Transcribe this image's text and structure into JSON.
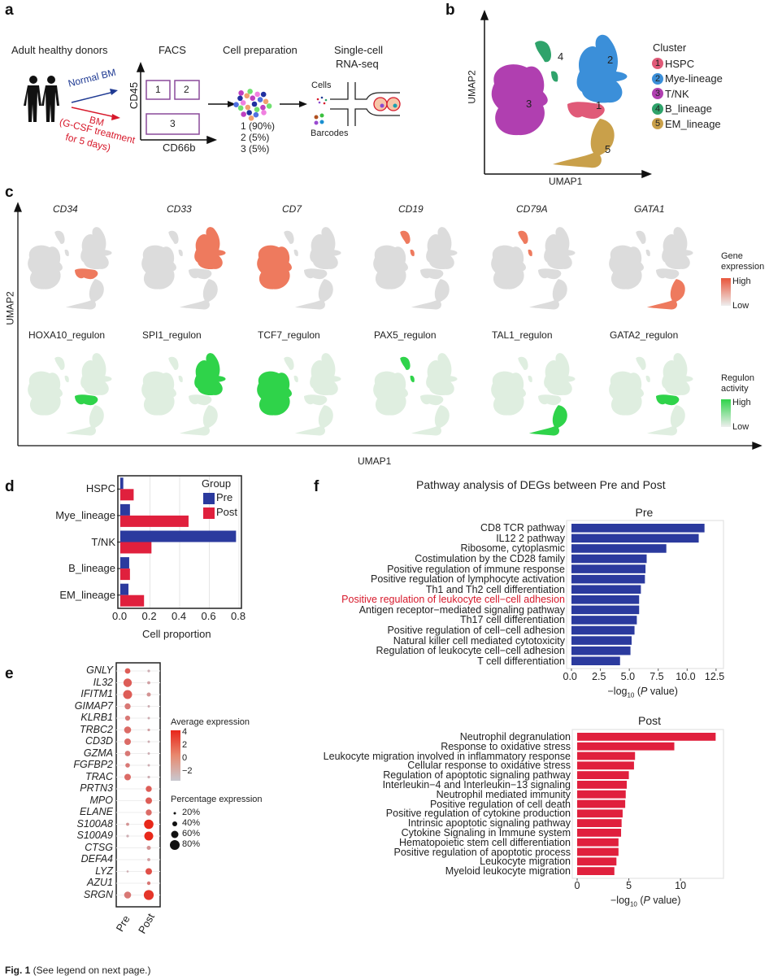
{
  "panels": {
    "a": "a",
    "b": "b",
    "c": "c",
    "d": "d",
    "e": "e",
    "f": "f"
  },
  "panel_a": {
    "donors": "Adult healthy donors",
    "facs": "FACS",
    "cell_prep": "Cell preparation",
    "scrna_line1": "Single-cell",
    "scrna_line2": "RNA-seq",
    "normal_bm": "Normal BM",
    "bm": "BM",
    "gcsf_line1": "(G-CSF treatment",
    "gcsf_line2": "for 5 days)",
    "y_axis": "CD45",
    "x_axis": "CD66b",
    "gates": [
      "1",
      "2",
      "3"
    ],
    "fractions": [
      "1 (90%)",
      "2 (5%)",
      "3 (5%)"
    ],
    "cells": "Cells",
    "barcodes": "Barcodes",
    "colors": {
      "normal": "#1f3a93",
      "gcsf": "#d7192b",
      "gate": "#8a4a9a"
    }
  },
  "panel_b": {
    "x_axis": "UMAP1",
    "y_axis": "UMAP2",
    "legend_title": "Cluster",
    "clusters": [
      {
        "num": "1",
        "name": "HSPC",
        "color": "#e05a78"
      },
      {
        "num": "2",
        "name": "Mye-lineage",
        "color": "#3b8fd9"
      },
      {
        "num": "3",
        "name": "T/NK",
        "color": "#b03fb0"
      },
      {
        "num": "4",
        "name": "B_lineage",
        "color": "#2fa36b"
      },
      {
        "num": "5",
        "name": "EM_lineage",
        "color": "#c9a04a"
      }
    ]
  },
  "panel_c": {
    "x_axis": "UMAP1",
    "y_axis": "UMAP2",
    "genes": [
      {
        "name": "CD34",
        "cluster": "1"
      },
      {
        "name": "CD33",
        "cluster": "2"
      },
      {
        "name": "CD7",
        "cluster": "3"
      },
      {
        "name": "CD19",
        "cluster": "4"
      },
      {
        "name": "CD79A",
        "cluster": "4"
      },
      {
        "name": "GATA1",
        "cluster": "5"
      }
    ],
    "regulons": [
      {
        "name": "HOXA10_regulon",
        "cluster": "1"
      },
      {
        "name": "SPI1_regulon",
        "cluster": "2"
      },
      {
        "name": "TCF7_regulon",
        "cluster": "3"
      },
      {
        "name": "PAX5_regulon",
        "cluster": "4"
      },
      {
        "name": "TAL1_regulon",
        "cluster": "5"
      },
      {
        "name": "GATA2_regulon",
        "cluster": "1"
      }
    ],
    "gene_legend": {
      "title1": "Gene",
      "title2": "expression",
      "high": "High",
      "low": "Low",
      "color": "#e8553a"
    },
    "regulon_legend": {
      "title1": "Regulon",
      "title2": "activity",
      "high": "High",
      "low": "Low",
      "color": "#2fd34a"
    }
  },
  "panel_f_title": "Pathway analysis of DEGs between Pre and Post",
  "panel_e": {
    "genes": [
      "GNLY",
      "IL32",
      "IFITM1",
      "GIMAP7",
      "KLRB1",
      "TRBC2",
      "CD3D",
      "GZMA",
      "FGFBP2",
      "TRAC",
      "PRTN3",
      "MPO",
      "ELANE",
      "S100A8",
      "S100A9",
      "CTSG",
      "DEFA4",
      "LYZ",
      "AZU1",
      "SRGN"
    ],
    "groups": [
      "Pre",
      "Post"
    ],
    "pre_pct": [
      40,
      70,
      75,
      45,
      35,
      55,
      50,
      40,
      30,
      50,
      0,
      0,
      0,
      15,
      10,
      0,
      0,
      5,
      0,
      55
    ],
    "post_pct": [
      10,
      15,
      25,
      8,
      8,
      10,
      8,
      8,
      8,
      10,
      45,
      50,
      45,
      80,
      75,
      25,
      15,
      50,
      20,
      85
    ],
    "pre_avg": [
      2,
      2,
      2,
      1,
      1,
      1.5,
      1.5,
      1,
      1,
      1.5,
      -2,
      -2,
      -2,
      0,
      -1,
      -2,
      -2,
      -1,
      -2,
      1
    ],
    "post_avg": [
      -1,
      -0.5,
      0,
      -1,
      -1,
      -0.5,
      -1,
      -1,
      -1,
      -1,
      2,
      2,
      1.5,
      4,
      4,
      0,
      -0.5,
      2.5,
      1,
      3.5
    ],
    "avg_legend_title": "Average expression",
    "avg_ticks": [
      "4",
      "2",
      "0",
      "−2"
    ],
    "pct_legend_title": "Percentage expression",
    "pct_ticks": [
      "20%",
      "40%",
      "60%",
      "80%"
    ]
  },
  "chart_data": [
    {
      "type": "bar",
      "orientation": "horizontal",
      "panel": "d",
      "categories": [
        "HSPC",
        "Mye_lineage",
        "T/NK",
        "B_lineage",
        "EM_lineage"
      ],
      "series": [
        {
          "name": "Pre",
          "color": "#2b3a9e",
          "values": [
            0.02,
            0.065,
            0.78,
            0.06,
            0.055
          ]
        },
        {
          "name": "Post",
          "color": "#e0203d",
          "values": [
            0.09,
            0.46,
            0.21,
            0.065,
            0.16
          ]
        }
      ],
      "xlabel": "Cell proportion",
      "xlim": [
        0,
        0.8
      ],
      "xticks": [
        "0.0",
        "0.2",
        "0.4",
        "0.6",
        "0.8"
      ],
      "legend_title": "Group",
      "legend": "top-right",
      "grid": true
    },
    {
      "type": "bar",
      "orientation": "horizontal",
      "panel": "f",
      "title": "Pre",
      "color": "#2b3a9e",
      "categories": [
        "CD8 TCR pathway",
        "IL12 2 pathway",
        "Ribosome, cytoplasmic",
        "Costimulation by the CD28 family",
        "Positive regulation of immune response",
        "Positive regulation of lymphocyte activation",
        "Th1 and Th2 cell differentiation",
        "Positive regulation of leukocyte cell−cell adhesion",
        "Antigen receptor−mediated signaling pathway",
        "Th17 cell differentiation",
        "Positive regulation of cell−cell adhesion",
        "Natural killer cell mediated cytotoxicity",
        "Regulation of leukocyte cell−cell adhesion",
        "T cell differentiation"
      ],
      "highlight": "Positive regulation of leukocyte cell−cell adhesion",
      "highlight_color": "#d7192b",
      "values": [
        11.5,
        11.0,
        8.2,
        6.5,
        6.4,
        6.35,
        6.0,
        5.85,
        5.85,
        5.65,
        5.45,
        5.2,
        5.1,
        4.2
      ],
      "xlim": [
        0,
        13
      ],
      "xticks": [
        "0.0",
        "2.5",
        "5.0",
        "7.5",
        "10.0",
        "12.5"
      ],
      "xlabel_prefix": "−log",
      "xlabel_sub": "10",
      "xlabel_p": "P",
      "xlabel_suffix": " value)"
    },
    {
      "type": "bar",
      "orientation": "horizontal",
      "panel": "f",
      "title": "Post",
      "color": "#e0203d",
      "categories": [
        "Neutrophil degranulation",
        "Response to oxidative stress",
        "Leukocyte migration involved in inflammatory response",
        "Cellular response to oxidative stress",
        "Regulation of apoptotic signaling pathway",
        "Interleukin−4 and Interleukin−13 signaling",
        "Neutrophil mediated immunity",
        "Positive regulation of cell death",
        "Positive regulation of cytokine production",
        "Intrinsic apoptotic signaling pathway",
        "Cytokine Signaling in Immune system",
        "Hematopoietic stem cell differentiation",
        "Positive regulation of apoptotic process",
        "Leukocyte migration",
        "Myeloid leukocyte migration"
      ],
      "values": [
        13.4,
        9.4,
        5.6,
        5.5,
        5.0,
        4.8,
        4.7,
        4.65,
        4.4,
        4.3,
        4.25,
        4.0,
        4.0,
        3.8,
        3.6
      ],
      "xlim": [
        0,
        14
      ],
      "xticks": [
        "0",
        "5",
        "10"
      ],
      "xlabel_prefix": "−log",
      "xlabel_sub": "10",
      "xlabel_p": "P",
      "xlabel_suffix": " value)"
    }
  ],
  "caption": {
    "label": "Fig. 1",
    "text": " (See legend on next page.)"
  }
}
